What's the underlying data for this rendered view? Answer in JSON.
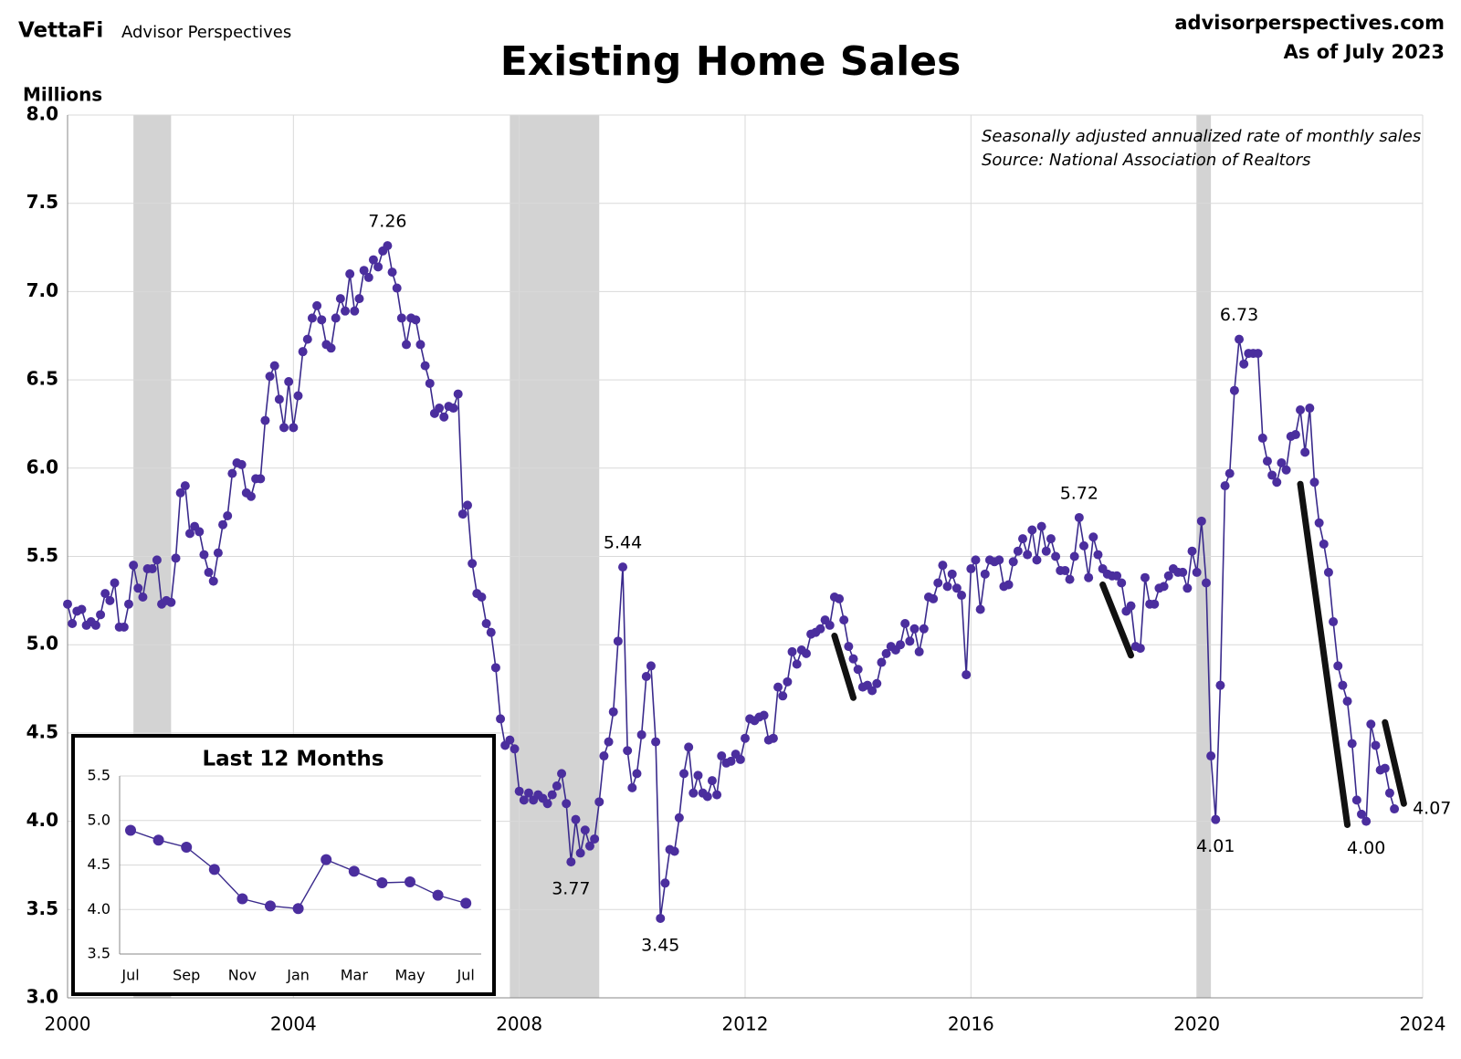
{
  "header": {
    "brand": "VettaFi",
    "brand_sub": "Advisor Perspectives",
    "site": "advisorperspectives.com",
    "as_of": "As of July 2023"
  },
  "chart_data": [
    {
      "type": "line",
      "title": "Existing Home Sales",
      "y_label": "Millions",
      "notes": [
        "Seasonally adjusted annualized rate of monthly sales",
        "Source: National Association of Realtors"
      ],
      "color": "#3a2a8c",
      "marker_color": "#4b2e9e",
      "label_color": "#3a2a8c",
      "xlim": [
        2000,
        2024
      ],
      "xticks": [
        2000,
        2004,
        2008,
        2012,
        2016,
        2020,
        2024
      ],
      "ylim": [
        3,
        8
      ],
      "yticks": [
        {
          "value": 3,
          "label": "3.0"
        },
        3.5,
        {
          "value": 4,
          "label": "4.0"
        },
        4.5,
        {
          "value": 5,
          "label": "5.0"
        },
        5.5,
        {
          "value": 6,
          "label": "6.0"
        },
        6.5,
        {
          "value": 7,
          "label": "7.0"
        },
        7.5,
        {
          "value": 8,
          "label": "8.0"
        }
      ],
      "grid": true,
      "recessions": [
        [
          "2001-03",
          "2001-11"
        ],
        [
          "2007-11",
          "2009-06"
        ],
        [
          "2020-01",
          "2020-04"
        ]
      ],
      "recession_color": "#d3d3d3",
      "x": [
        "2000-01",
        "2000-02",
        "2000-03",
        "2000-04",
        "2000-05",
        "2000-06",
        "2000-07",
        "2000-08",
        "2000-09",
        "2000-10",
        "2000-11",
        "2000-12",
        "2001-01",
        "2001-02",
        "2001-03",
        "2001-04",
        "2001-05",
        "2001-06",
        "2001-07",
        "2001-08",
        "2001-09",
        "2001-10",
        "2001-11",
        "2001-12",
        "2002-01",
        "2002-02",
        "2002-03",
        "2002-04",
        "2002-05",
        "2002-06",
        "2002-07",
        "2002-08",
        "2002-09",
        "2002-10",
        "2002-11",
        "2002-12",
        "2003-01",
        "2003-02",
        "2003-03",
        "2003-04",
        "2003-05",
        "2003-06",
        "2003-07",
        "2003-08",
        "2003-09",
        "2003-10",
        "2003-11",
        "2003-12",
        "2004-01",
        "2004-02",
        "2004-03",
        "2004-04",
        "2004-05",
        "2004-06",
        "2004-07",
        "2004-08",
        "2004-09",
        "2004-10",
        "2004-11",
        "2004-12",
        "2005-01",
        "2005-02",
        "2005-03",
        "2005-04",
        "2005-05",
        "2005-06",
        "2005-07",
        "2005-08",
        "2005-09",
        "2005-10",
        "2005-11",
        "2005-12",
        "2006-01",
        "2006-02",
        "2006-03",
        "2006-04",
        "2006-05",
        "2006-06",
        "2006-07",
        "2006-08",
        "2006-09",
        "2006-10",
        "2006-11",
        "2006-12",
        "2007-01",
        "2007-02",
        "2007-03",
        "2007-04",
        "2007-05",
        "2007-06",
        "2007-07",
        "2007-08",
        "2007-09",
        "2007-10",
        "2007-11",
        "2007-12",
        "2008-01",
        "2008-02",
        "2008-03",
        "2008-04",
        "2008-05",
        "2008-06",
        "2008-07",
        "2008-08",
        "2008-09",
        "2008-10",
        "2008-11",
        "2008-12",
        "2009-01",
        "2009-02",
        "2009-03",
        "2009-04",
        "2009-05",
        "2009-06",
        "2009-07",
        "2009-08",
        "2009-09",
        "2009-10",
        "2009-11",
        "2009-12",
        "2010-01",
        "2010-02",
        "2010-03",
        "2010-04",
        "2010-05",
        "2010-06",
        "2010-07",
        "2010-08",
        "2010-09",
        "2010-10",
        "2010-11",
        "2010-12",
        "2011-01",
        "2011-02",
        "2011-03",
        "2011-04",
        "2011-05",
        "2011-06",
        "2011-07",
        "2011-08",
        "2011-09",
        "2011-10",
        "2011-11",
        "2011-12",
        "2012-01",
        "2012-02",
        "2012-03",
        "2012-04",
        "2012-05",
        "2012-06",
        "2012-07",
        "2012-08",
        "2012-09",
        "2012-10",
        "2012-11",
        "2012-12",
        "2013-01",
        "2013-02",
        "2013-03",
        "2013-04",
        "2013-05",
        "2013-06",
        "2013-07",
        "2013-08",
        "2013-09",
        "2013-10",
        "2013-11",
        "2013-12",
        "2014-01",
        "2014-02",
        "2014-03",
        "2014-04",
        "2014-05",
        "2014-06",
        "2014-07",
        "2014-08",
        "2014-09",
        "2014-10",
        "2014-11",
        "2014-12",
        "2015-01",
        "2015-02",
        "2015-03",
        "2015-04",
        "2015-05",
        "2015-06",
        "2015-07",
        "2015-08",
        "2015-09",
        "2015-10",
        "2015-11",
        "2015-12",
        "2016-01",
        "2016-02",
        "2016-03",
        "2016-04",
        "2016-05",
        "2016-06",
        "2016-07",
        "2016-08",
        "2016-09",
        "2016-10",
        "2016-11",
        "2016-12",
        "2017-01",
        "2017-02",
        "2017-03",
        "2017-04",
        "2017-05",
        "2017-06",
        "2017-07",
        "2017-08",
        "2017-09",
        "2017-10",
        "2017-11",
        "2017-12",
        "2018-01",
        "2018-02",
        "2018-03",
        "2018-04",
        "2018-05",
        "2018-06",
        "2018-07",
        "2018-08",
        "2018-09",
        "2018-10",
        "2018-11",
        "2018-12",
        "2019-01",
        "2019-02",
        "2019-03",
        "2019-04",
        "2019-05",
        "2019-06",
        "2019-07",
        "2019-08",
        "2019-09",
        "2019-10",
        "2019-11",
        "2019-12",
        "2020-01",
        "2020-02",
        "2020-03",
        "2020-04",
        "2020-05",
        "2020-06",
        "2020-07",
        "2020-08",
        "2020-09",
        "2020-10",
        "2020-11",
        "2020-12",
        "2021-01",
        "2021-02",
        "2021-03",
        "2021-04",
        "2021-05",
        "2021-06",
        "2021-07",
        "2021-08",
        "2021-09",
        "2021-10",
        "2021-11",
        "2021-12",
        "2022-01",
        "2022-02",
        "2022-03",
        "2022-04",
        "2022-05",
        "2022-06",
        "2022-07",
        "2022-08",
        "2022-09",
        "2022-10",
        "2022-11",
        "2022-12",
        "2023-01",
        "2023-02",
        "2023-03",
        "2023-04",
        "2023-05",
        "2023-06",
        "2023-07"
      ],
      "values": [
        5.23,
        5.12,
        5.19,
        5.2,
        5.11,
        5.13,
        5.11,
        5.17,
        5.29,
        5.25,
        5.35,
        5.1,
        5.1,
        5.23,
        5.45,
        5.32,
        5.27,
        5.43,
        5.43,
        5.48,
        5.23,
        5.25,
        5.24,
        5.49,
        5.86,
        5.9,
        5.63,
        5.67,
        5.64,
        5.51,
        5.41,
        5.36,
        5.52,
        5.68,
        5.73,
        5.97,
        6.03,
        6.02,
        5.86,
        5.84,
        5.94,
        5.94,
        6.27,
        6.52,
        6.58,
        6.39,
        6.23,
        6.49,
        6.23,
        6.41,
        6.66,
        6.73,
        6.85,
        6.92,
        6.84,
        6.7,
        6.68,
        6.85,
        6.96,
        6.89,
        7.1,
        6.89,
        6.96,
        7.12,
        7.08,
        7.18,
        7.14,
        7.23,
        7.26,
        7.11,
        7.02,
        6.85,
        6.7,
        6.85,
        6.84,
        6.7,
        6.58,
        6.48,
        6.31,
        6.34,
        6.29,
        6.35,
        6.34,
        6.42,
        5.74,
        5.79,
        5.46,
        5.29,
        5.27,
        5.12,
        5.07,
        4.87,
        4.58,
        4.43,
        4.46,
        4.41,
        4.17,
        4.12,
        4.16,
        4.12,
        4.15,
        4.13,
        4.1,
        4.15,
        4.2,
        4.27,
        4.1,
        3.77,
        4.01,
        3.82,
        3.95,
        3.86,
        3.9,
        4.11,
        4.37,
        4.45,
        4.62,
        5.02,
        5.44,
        4.4,
        4.19,
        4.27,
        4.49,
        4.82,
        4.88,
        4.45,
        3.45,
        3.65,
        3.84,
        3.83,
        4.02,
        4.27,
        4.42,
        4.16,
        4.26,
        4.16,
        4.14,
        4.23,
        4.15,
        4.37,
        4.33,
        4.34,
        4.38,
        4.35,
        4.47,
        4.58,
        4.57,
        4.59,
        4.6,
        4.46,
        4.47,
        4.76,
        4.71,
        4.79,
        4.96,
        4.89,
        4.97,
        4.95,
        5.06,
        5.07,
        5.09,
        5.14,
        5.11,
        5.27,
        5.26,
        5.14,
        4.99,
        4.92,
        4.86,
        4.76,
        4.77,
        4.74,
        4.78,
        4.9,
        4.95,
        4.99,
        4.97,
        5.0,
        5.12,
        5.02,
        5.09,
        4.96,
        5.09,
        5.27,
        5.26,
        5.35,
        5.45,
        5.33,
        5.4,
        5.32,
        5.28,
        4.83,
        5.43,
        5.48,
        5.2,
        5.4,
        5.48,
        5.47,
        5.48,
        5.33,
        5.34,
        5.47,
        5.53,
        5.6,
        5.51,
        5.65,
        5.48,
        5.67,
        5.53,
        5.6,
        5.5,
        5.42,
        5.42,
        5.37,
        5.5,
        5.72,
        5.56,
        5.38,
        5.61,
        5.51,
        5.43,
        5.4,
        5.39,
        5.39,
        5.35,
        5.19,
        5.22,
        4.99,
        4.98,
        5.38,
        5.23,
        5.23,
        5.32,
        5.33,
        5.39,
        5.43,
        5.41,
        5.41,
        5.32,
        5.53,
        5.41,
        5.7,
        5.35,
        4.37,
        4.01,
        4.77,
        5.9,
        5.97,
        6.44,
        6.73,
        6.59,
        6.65,
        6.65,
        6.65,
        6.17,
        6.04,
        5.96,
        5.92,
        6.03,
        5.99,
        6.18,
        6.19,
        6.33,
        6.09,
        6.34,
        5.92,
        5.69,
        5.57,
        5.41,
        5.13,
        4.88,
        4.77,
        4.68,
        4.44,
        4.12,
        4.04,
        4.0,
        4.55,
        4.43,
        4.29,
        4.3,
        4.16,
        4.07
      ],
      "labeled_points": [
        {
          "x": "2005-09",
          "label": "7.26"
        },
        {
          "x": "2008-12",
          "label": "3.77"
        },
        {
          "x": "2009-11",
          "label": "5.44"
        },
        {
          "x": "2010-07",
          "label": "3.45"
        },
        {
          "x": "2017-12",
          "label": "5.72"
        },
        {
          "x": "2020-05",
          "label": "4.01"
        },
        {
          "x": "2020-10",
          "label": "6.73"
        },
        {
          "x": "2023-01",
          "label": "4.00"
        },
        {
          "x": "2023-07",
          "label": "4.07"
        }
      ],
      "trend_color": "#111111",
      "trend_lines": [
        {
          "x": [
            "2013-08",
            "2013-12"
          ],
          "y": [
            5.05,
            4.7
          ]
        },
        {
          "x": [
            "2018-05",
            "2018-11"
          ],
          "y": [
            5.34,
            4.94
          ]
        },
        {
          "x": [
            "2021-11",
            "2022-09"
          ],
          "y": [
            5.91,
            3.98
          ]
        },
        {
          "x": [
            "2023-05",
            "2023-09"
          ],
          "y": [
            4.56,
            4.1
          ]
        }
      ]
    },
    {
      "type": "line",
      "title": "Last 12 Months",
      "color": "#3a2a8c",
      "marker_color": "#4b2e9e",
      "categories": [
        "Jul",
        null,
        "Sep",
        null,
        "Nov",
        null,
        "Jan",
        null,
        "Mar",
        null,
        "May",
        null,
        "Jul"
      ],
      "values": [
        4.89,
        4.78,
        4.7,
        4.45,
        4.12,
        4.04,
        4.01,
        4.56,
        4.43,
        4.3,
        4.31,
        4.16,
        4.07
      ],
      "ylim": [
        3.5,
        5.5
      ],
      "yticks": [
        3.5,
        {
          "value": 4,
          "label": "4.0"
        },
        4.5,
        {
          "value": 5,
          "label": "5.0"
        },
        5.5
      ],
      "grid": true
    }
  ]
}
